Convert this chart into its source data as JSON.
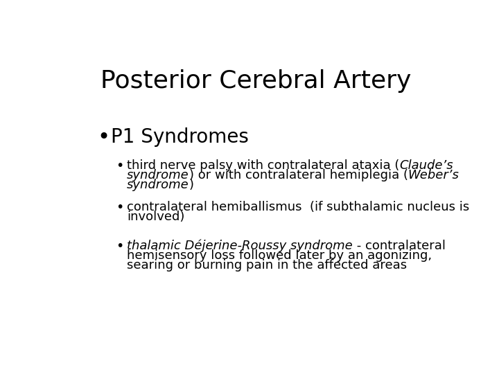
{
  "title": "Posterior Cerebral Artery",
  "bg": "#ffffff",
  "fg": "#000000",
  "title_fs": 26,
  "b1_fs": 20,
  "sub_fs": 13,
  "figwidth": 7.2,
  "figheight": 5.4,
  "dpi": 100,
  "bullet1": "P1 Syndromes",
  "sub0_lines": [
    [
      {
        "t": "third nerve palsy with contralateral ataxia (",
        "i": false
      },
      {
        "t": "Claude’s",
        "i": true
      }
    ],
    [
      {
        "t": "syndrome",
        "i": true
      },
      {
        "t": ") or with contralateral hemiplegia (",
        "i": false
      },
      {
        "t": "Weber’s",
        "i": true
      }
    ],
    [
      {
        "t": "syndrome",
        "i": true
      },
      {
        "t": ")",
        "i": false
      }
    ]
  ],
  "sub1_lines": [
    [
      {
        "t": "contralateral hemiballismus  (if subthalamic nucleus is",
        "i": false
      }
    ],
    [
      {
        "t": "involved)",
        "i": false
      }
    ]
  ],
  "sub2_lines": [
    [
      {
        "t": "thalamic Déjerine-Roussy syndrome",
        "i": true
      },
      {
        "t": " - contralateral",
        "i": false
      }
    ],
    [
      {
        "t": "hemisensory loss followed later by an agonizing,",
        "i": false
      }
    ],
    [
      {
        "t": "searing or burning pain in the affected areas",
        "i": false
      }
    ]
  ]
}
